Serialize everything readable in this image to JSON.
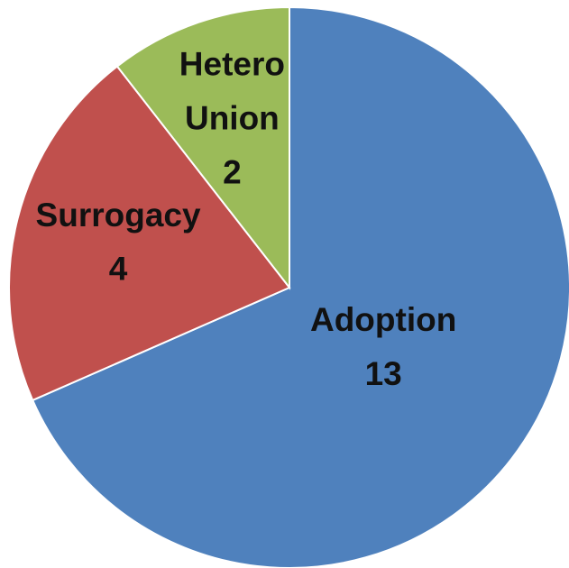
{
  "chart_data": {
    "type": "pie",
    "categories": [
      "Adoption",
      "Surrogacy",
      "Hetero Union"
    ],
    "values": [
      13,
      4,
      2
    ],
    "colors": [
      "#4f81bd",
      "#c0504d",
      "#9bbb59"
    ]
  }
}
